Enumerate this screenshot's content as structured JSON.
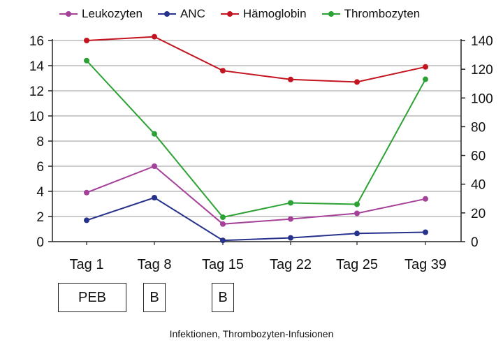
{
  "chart_data": {
    "type": "line",
    "categories": [
      "Tag 1",
      "Tag 8",
      "Tag 15",
      "Tag 22",
      "Tag 25",
      "Tag 39"
    ],
    "left_axis": {
      "ylim": [
        0,
        16
      ],
      "ticks": [
        "0",
        "2",
        "4",
        "6",
        "8",
        "10",
        "12",
        "14",
        "16"
      ]
    },
    "right_axis": {
      "ylim": [
        0,
        140
      ],
      "ticks": [
        "0",
        "20",
        "40",
        "60",
        "80",
        "100",
        "120",
        "140"
      ]
    },
    "grid": true,
    "legend_position": "top",
    "series": [
      {
        "name": "Leukozyten",
        "color": "#a6419a",
        "axis": "left",
        "values": [
          3.9,
          6.0,
          1.4,
          1.8,
          2.25,
          3.4
        ]
      },
      {
        "name": "ANC",
        "color": "#27328c",
        "axis": "left",
        "values": [
          1.7,
          3.5,
          0.1,
          0.3,
          0.65,
          0.75
        ]
      },
      {
        "name": "Hämoglobin",
        "color": "#c3141f",
        "axis": "left",
        "values": [
          16.0,
          16.3,
          13.6,
          12.9,
          12.7,
          13.9
        ]
      },
      {
        "name": "Thrombozyten",
        "color": "#2ca234",
        "axis": "right",
        "values": [
          126,
          75,
          17,
          27,
          26,
          113
        ]
      }
    ]
  },
  "annotations": {
    "boxes": [
      {
        "label": "PEB",
        "category_start": "Tag 1",
        "category_end": "Tag 1"
      },
      {
        "label": "B",
        "category_start": "Tag 8",
        "category_end": "Tag 8"
      },
      {
        "label": "B",
        "category_start": "Tag 15",
        "category_end": "Tag 15"
      }
    ],
    "footnote": "Infektionen, Thrombozyten-Infusionen"
  }
}
